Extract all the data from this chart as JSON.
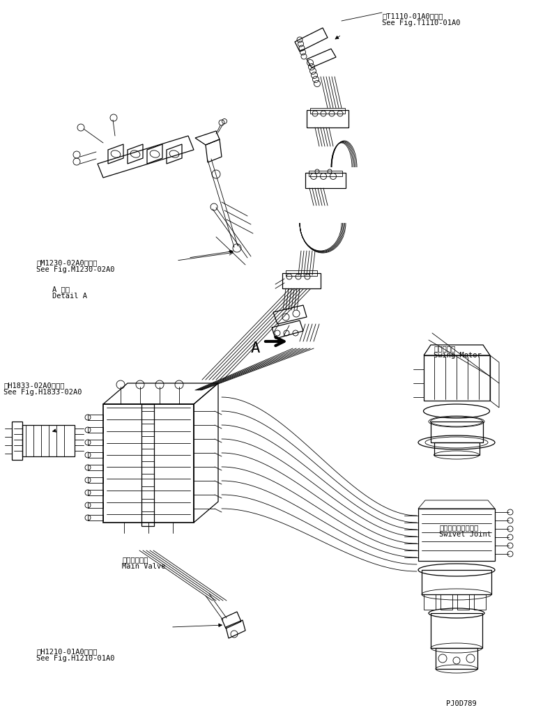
{
  "background_color": "#ffffff",
  "fig_width": 7.69,
  "fig_height": 10.19,
  "dpi": 100,
  "labels": {
    "t1110_line1": "第T1110-01A0図参照",
    "t1110_line2": "See Fig.T1110-01A0",
    "m1230_line1": "第M1230-02A0図参照",
    "m1230_line2": "See Fig.M1230-02A0",
    "detail_a_line1": "A 詳細",
    "detail_a_line2": "Detail A",
    "swing_line1": "旋回モータ",
    "swing_line2": "Swing Motor",
    "h1833_line1": "第H1833-02A0図参照",
    "h1833_line2": "See Fig.H1833-02A0",
    "mainvalve_line1": "メインバルブ",
    "mainvalve_line2": "Main Valve",
    "swivel_line1": "スイベルジョイント",
    "swivel_line2": "Swivel Joint",
    "h1210_line1": "第H1210-01A0図参照",
    "h1210_line2": "See Fig.H1210-01A0",
    "partno": "PJ0D789"
  }
}
